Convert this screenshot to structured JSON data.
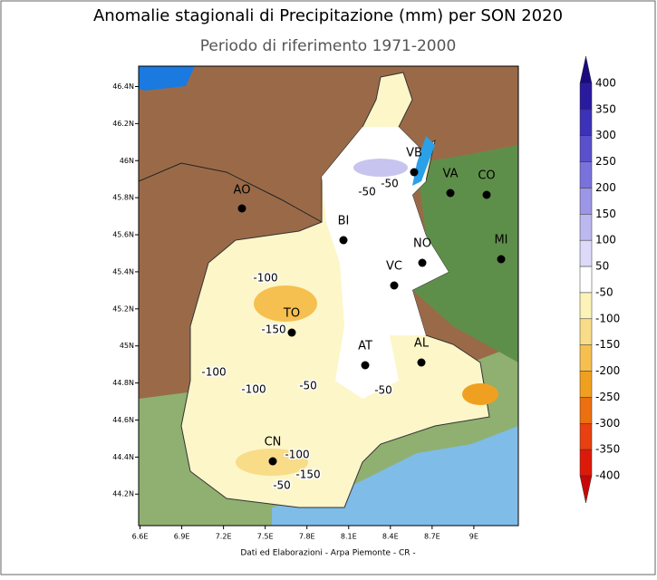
{
  "title": "Anomalie stagionali di Precipitazione (mm) per SON 2020",
  "subtitle": "Periodo di riferimento 1971-2000",
  "footer": "Dati ed Elaborazioni - Arpa Piemonte - CR -",
  "map": {
    "xlim": [
      6.59,
      9.32
    ],
    "ylim": [
      44.03,
      46.51
    ],
    "xticks": [
      {
        "value": 6.6,
        "label": "6.6E"
      },
      {
        "value": 6.9,
        "label": "6.9E"
      },
      {
        "value": 7.2,
        "label": "7.2E"
      },
      {
        "value": 7.5,
        "label": "7.5E"
      },
      {
        "value": 7.8,
        "label": "7.8E"
      },
      {
        "value": 8.1,
        "label": "8.1E"
      },
      {
        "value": 8.4,
        "label": "8.4E"
      },
      {
        "value": 8.7,
        "label": "8.7E"
      },
      {
        "value": 9,
        "label": "9E"
      }
    ],
    "yticks": [
      {
        "value": 46.4,
        "label": "46.4N"
      },
      {
        "value": 46.2,
        "label": "46.2N"
      },
      {
        "value": 46,
        "label": "46N"
      },
      {
        "value": 45.8,
        "label": "45.8N"
      },
      {
        "value": 45.6,
        "label": "45.6N"
      },
      {
        "value": 45.4,
        "label": "45.4N"
      },
      {
        "value": 45.2,
        "label": "45.2N"
      },
      {
        "value": 45,
        "label": "45N"
      },
      {
        "value": 44.8,
        "label": "44.8N"
      },
      {
        "value": 44.6,
        "label": "44.6N"
      },
      {
        "value": 44.4,
        "label": "44.4N"
      },
      {
        "value": 44.2,
        "label": "44.2N"
      }
    ],
    "cities": [
      "AO",
      "BI",
      "VB",
      "VA",
      "CO",
      "NO",
      "MI",
      "VC",
      "TO",
      "AT",
      "AL",
      "CN"
    ],
    "contour_labels": [
      "-50",
      "-50",
      "-100",
      "-150",
      "-100",
      "-100",
      "-50",
      "-50",
      "-100",
      "-150",
      "-50"
    ]
  },
  "colorbar": {
    "levels": [
      400,
      350,
      300,
      250,
      200,
      150,
      100,
      50,
      -50,
      -100,
      -150,
      -200,
      -250,
      -300,
      -350,
      -400
    ],
    "colors": [
      "#2a1a9e",
      "#3c32b8",
      "#5a50cc",
      "#7a72dc",
      "#9c96e6",
      "#bcb8f0",
      "#dcdaf8",
      "#ffffff",
      "#fbf3b8",
      "#f8dc88",
      "#f5c050",
      "#f0a020",
      "#ec7010",
      "#e84010",
      "#dd1a0a"
    ],
    "over_color": "#1a0a80",
    "under_color": "#c80808"
  }
}
